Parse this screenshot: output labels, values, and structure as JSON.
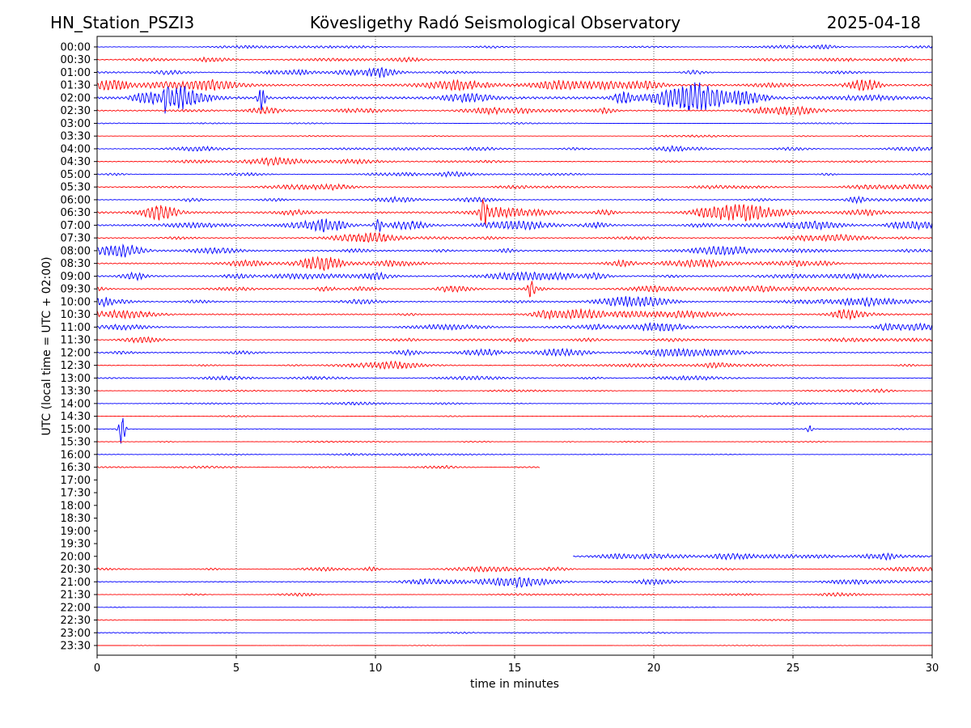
{
  "header": {
    "station": "HN_Station_PSZI3",
    "observatory": "Kövesligethy Radó Seismological Observatory",
    "date": "2025-04-18"
  },
  "chart_data": {
    "type": "line",
    "title": "Kövesligethy Radó Seismological Observatory",
    "xlabel": "time in minutes",
    "ylabel": "UTC (local time = UTC + 02:00)",
    "xlim": [
      0,
      30
    ],
    "xticks": [
      "0",
      "5",
      "10",
      "15",
      "20",
      "25",
      "30"
    ],
    "grid": "vertical dotted at every 5 minutes",
    "colors": {
      "hour": "#0000ff",
      "half_hour": "#ff0000"
    },
    "rows": [
      {
        "label": "00:00",
        "start": 0,
        "end": 30,
        "activity": 0.15
      },
      {
        "label": "00:30",
        "start": 0,
        "end": 30,
        "activity": 0.2
      },
      {
        "label": "01:00",
        "start": 0,
        "end": 30,
        "activity": 0.25
      },
      {
        "label": "01:30",
        "start": 0,
        "end": 30,
        "activity": 0.55
      },
      {
        "label": "02:00",
        "start": 0,
        "end": 30,
        "activity": 0.7
      },
      {
        "label": "02:30",
        "start": 0,
        "end": 30,
        "activity": 0.35
      },
      {
        "label": "03:00",
        "start": 0,
        "end": 30,
        "activity": 0.06
      },
      {
        "label": "03:30",
        "start": 0,
        "end": 30,
        "activity": 0.07
      },
      {
        "label": "04:00",
        "start": 0,
        "end": 30,
        "activity": 0.2
      },
      {
        "label": "04:30",
        "start": 0,
        "end": 30,
        "activity": 0.2
      },
      {
        "label": "05:00",
        "start": 0,
        "end": 30,
        "activity": 0.15
      },
      {
        "label": "05:30",
        "start": 0,
        "end": 30,
        "activity": 0.25
      },
      {
        "label": "06:00",
        "start": 0,
        "end": 30,
        "activity": 0.2
      },
      {
        "label": "06:30",
        "start": 0,
        "end": 30,
        "activity": 0.5
      },
      {
        "label": "07:00",
        "start": 0,
        "end": 30,
        "activity": 0.45
      },
      {
        "label": "07:30",
        "start": 0,
        "end": 30,
        "activity": 0.3
      },
      {
        "label": "08:00",
        "start": 0,
        "end": 30,
        "activity": 0.4
      },
      {
        "label": "08:30",
        "start": 0,
        "end": 30,
        "activity": 0.35
      },
      {
        "label": "09:00",
        "start": 0,
        "end": 30,
        "activity": 0.4
      },
      {
        "label": "09:30",
        "start": 0,
        "end": 30,
        "activity": 0.3
      },
      {
        "label": "10:00",
        "start": 0,
        "end": 30,
        "activity": 0.3
      },
      {
        "label": "10:30",
        "start": 0,
        "end": 30,
        "activity": 0.35
      },
      {
        "label": "11:00",
        "start": 0,
        "end": 30,
        "activity": 0.3
      },
      {
        "label": "11:30",
        "start": 0,
        "end": 30,
        "activity": 0.2
      },
      {
        "label": "12:00",
        "start": 0,
        "end": 30,
        "activity": 0.3
      },
      {
        "label": "12:30",
        "start": 0,
        "end": 30,
        "activity": 0.2
      },
      {
        "label": "13:00",
        "start": 0,
        "end": 30,
        "activity": 0.15
      },
      {
        "label": "13:30",
        "start": 0,
        "end": 30,
        "activity": 0.1
      },
      {
        "label": "14:00",
        "start": 0,
        "end": 30,
        "activity": 0.1
      },
      {
        "label": "14:30",
        "start": 0,
        "end": 30,
        "activity": 0.06
      },
      {
        "label": "15:00",
        "start": 0,
        "end": 30,
        "activity": 0.05
      },
      {
        "label": "15:30",
        "start": 0,
        "end": 30,
        "activity": 0.06
      },
      {
        "label": "16:00",
        "start": 0,
        "end": 30,
        "activity": 0.08
      },
      {
        "label": "16:30",
        "start": 0,
        "end": 15.9,
        "activity": 0.08
      },
      {
        "label": "17:00",
        "start": null,
        "end": null,
        "activity": 0
      },
      {
        "label": "17:30",
        "start": null,
        "end": null,
        "activity": 0
      },
      {
        "label": "18:00",
        "start": null,
        "end": null,
        "activity": 0
      },
      {
        "label": "18:30",
        "start": null,
        "end": null,
        "activity": 0
      },
      {
        "label": "19:00",
        "start": null,
        "end": null,
        "activity": 0
      },
      {
        "label": "19:30",
        "start": null,
        "end": null,
        "activity": 0
      },
      {
        "label": "20:00",
        "start": 17.1,
        "end": 30,
        "activity": 0.2
      },
      {
        "label": "20:30",
        "start": 0,
        "end": 30,
        "activity": 0.2
      },
      {
        "label": "21:00",
        "start": 0,
        "end": 30,
        "activity": 0.25
      },
      {
        "label": "21:30",
        "start": 0,
        "end": 30,
        "activity": 0.12
      },
      {
        "label": "22:00",
        "start": 0,
        "end": 30,
        "activity": 0.04
      },
      {
        "label": "22:30",
        "start": 0,
        "end": 30,
        "activity": 0.04
      },
      {
        "label": "23:00",
        "start": 0,
        "end": 30,
        "activity": 0.05
      },
      {
        "label": "23:30",
        "start": 0,
        "end": 30,
        "activity": 0.03
      }
    ],
    "events": [
      {
        "row": "15:00",
        "minute": 0.9,
        "amplitude": 1.6
      },
      {
        "row": "15:00",
        "minute": 25.6,
        "amplitude": 0.3
      },
      {
        "row": "02:00",
        "minute": 2.5,
        "amplitude": 1.6
      },
      {
        "row": "02:00",
        "minute": 5.9,
        "amplitude": 1.3
      },
      {
        "row": "06:30",
        "minute": 13.9,
        "amplitude": 1.1
      },
      {
        "row": "07:00",
        "minute": 10.1,
        "amplitude": 1.0
      },
      {
        "row": "09:30",
        "minute": 15.6,
        "amplitude": 0.8
      }
    ]
  }
}
